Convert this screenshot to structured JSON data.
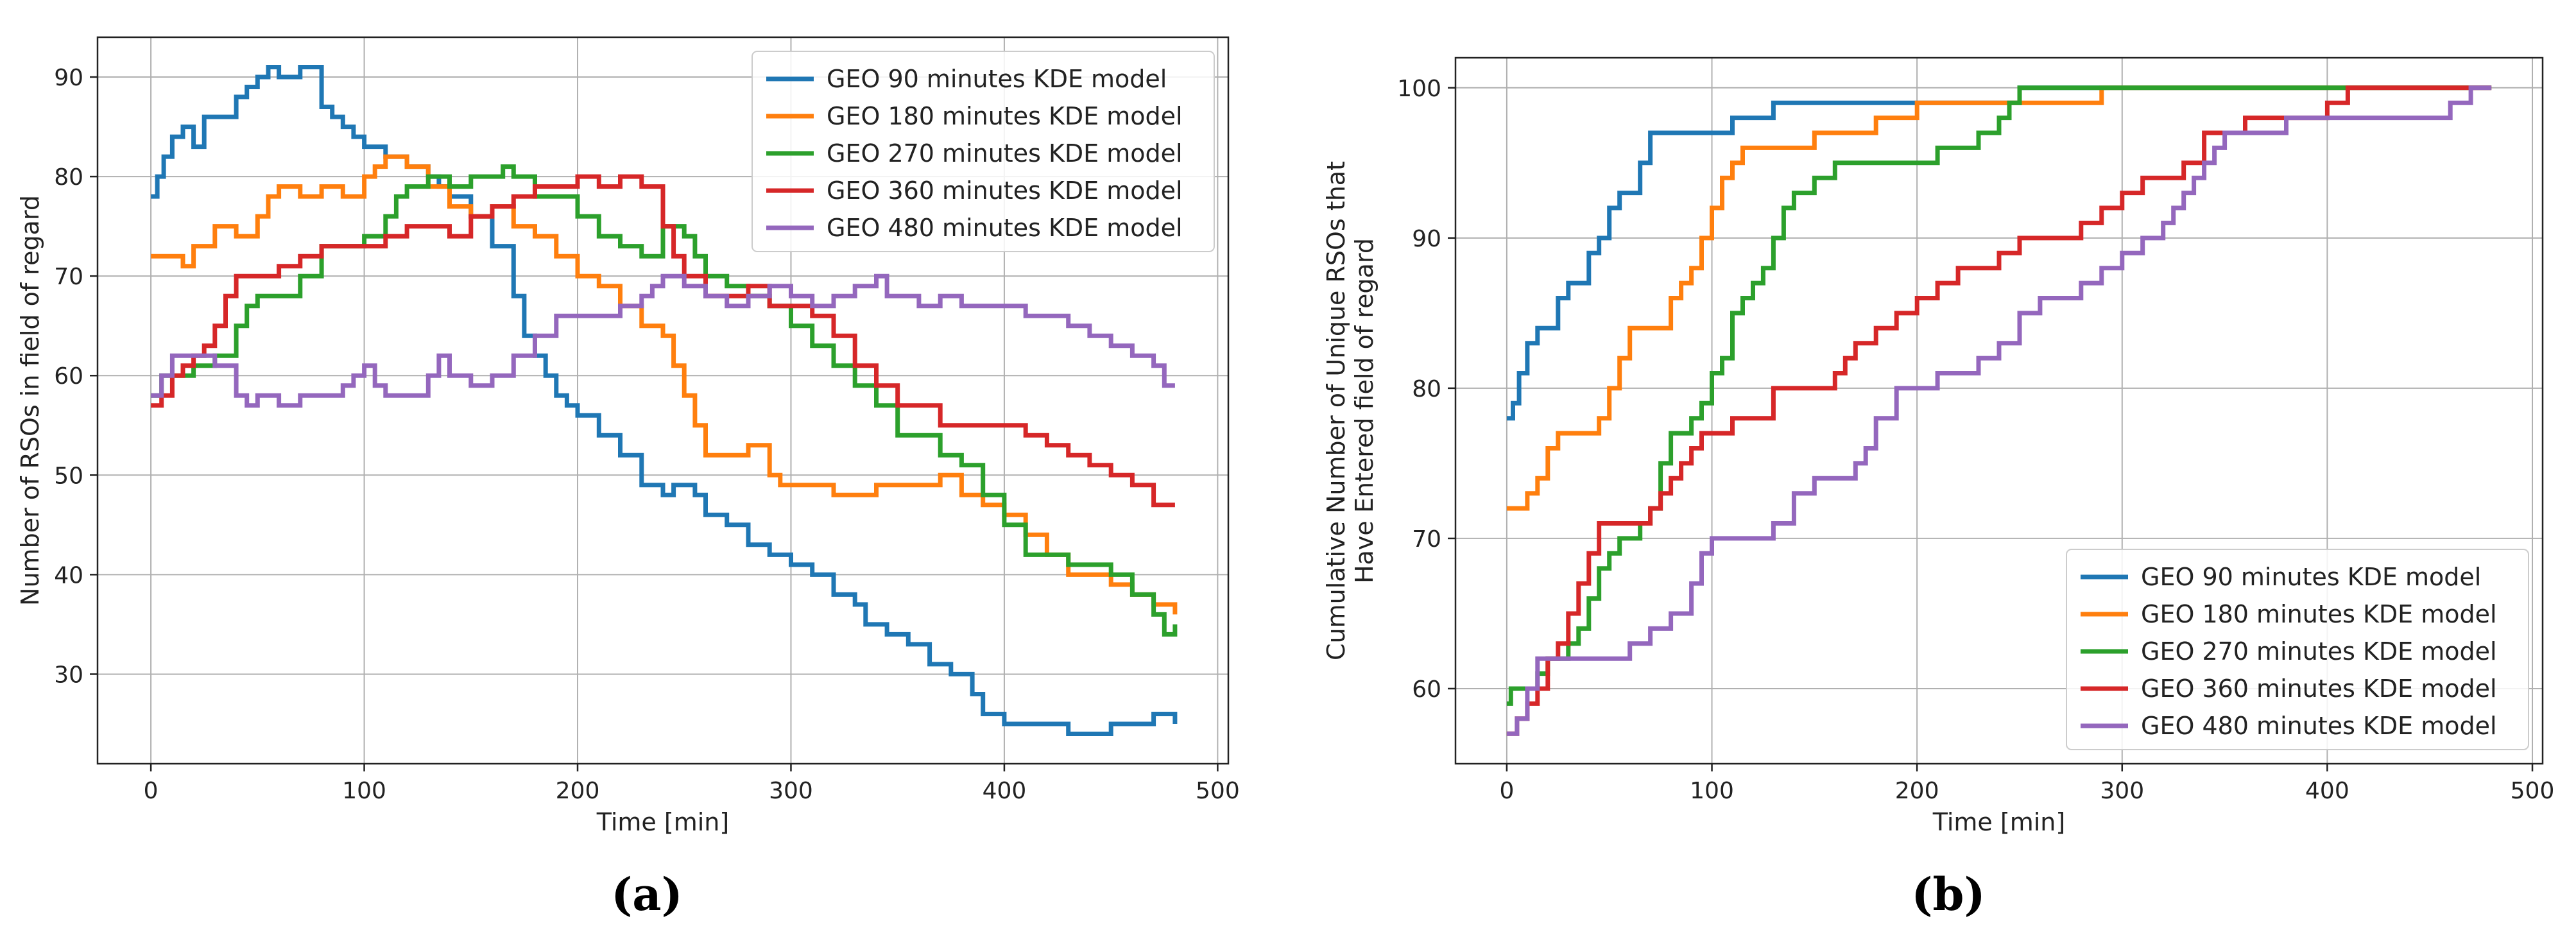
{
  "chart_data": [
    {
      "type": "line",
      "panel_label": "(a)",
      "title": "",
      "xlabel": "Time [min]",
      "ylabel": "Number of RSOs in field of regard",
      "xlim": [
        -25,
        505
      ],
      "ylim": [
        21,
        94
      ],
      "xticks": [
        0,
        100,
        200,
        300,
        400,
        500
      ],
      "yticks": [
        30,
        40,
        50,
        60,
        70,
        80,
        90
      ],
      "grid": true,
      "legend": "top-right",
      "series": [
        {
          "name": "GEO 90 minutes KDE model",
          "color": "#1f77b4",
          "x": [
            0,
            3,
            6,
            10,
            15,
            20,
            25,
            30,
            40,
            45,
            50,
            55,
            60,
            65,
            70,
            80,
            85,
            90,
            95,
            100,
            110,
            120,
            130,
            135,
            140,
            150,
            160,
            170,
            175,
            180,
            185,
            190,
            195,
            200,
            210,
            220,
            230,
            240,
            245,
            255,
            260,
            270,
            280,
            290,
            300,
            310,
            320,
            330,
            335,
            345,
            355,
            365,
            375,
            385,
            390,
            400,
            410,
            420,
            430,
            440,
            450,
            460,
            470,
            480
          ],
          "y": [
            78,
            80,
            82,
            84,
            85,
            83,
            86,
            86,
            88,
            89,
            90,
            91,
            90,
            90,
            91,
            87,
            86,
            85,
            84,
            83,
            82,
            81,
            80,
            79,
            78,
            76,
            73,
            68,
            64,
            62,
            60,
            58,
            57,
            56,
            54,
            52,
            49,
            48,
            49,
            48,
            46,
            45,
            43,
            42,
            41,
            40,
            38,
            37,
            35,
            34,
            33,
            31,
            30,
            28,
            26,
            25,
            25,
            25,
            24,
            24,
            25,
            25,
            26,
            25
          ]
        },
        {
          "name": "GEO 180 minutes KDE model",
          "color": "#ff7f0e",
          "x": [
            0,
            10,
            15,
            20,
            30,
            40,
            50,
            55,
            60,
            70,
            80,
            90,
            100,
            105,
            110,
            120,
            130,
            140,
            150,
            160,
            170,
            180,
            190,
            200,
            210,
            220,
            230,
            240,
            245,
            250,
            255,
            260,
            265,
            270,
            280,
            290,
            295,
            300,
            310,
            320,
            330,
            340,
            350,
            360,
            370,
            380,
            390,
            400,
            410,
            420,
            430,
            440,
            450,
            460,
            470,
            480
          ],
          "y": [
            72,
            72,
            71,
            73,
            75,
            74,
            76,
            78,
            79,
            78,
            79,
            78,
            80,
            81,
            82,
            81,
            79,
            77,
            76,
            77,
            75,
            74,
            72,
            70,
            69,
            67,
            65,
            64,
            61,
            58,
            55,
            52,
            52,
            52,
            53,
            50,
            49,
            49,
            49,
            48,
            48,
            49,
            49,
            49,
            50,
            48,
            47,
            46,
            44,
            42,
            40,
            40,
            39,
            38,
            37,
            36
          ]
        },
        {
          "name": "GEO 270 minutes KDE model",
          "color": "#2ca02c",
          "x": [
            0,
            5,
            10,
            20,
            30,
            40,
            45,
            50,
            60,
            70,
            80,
            90,
            100,
            110,
            115,
            120,
            130,
            140,
            150,
            160,
            165,
            170,
            180,
            190,
            200,
            210,
            220,
            230,
            240,
            250,
            255,
            260,
            270,
            280,
            290,
            300,
            310,
            320,
            330,
            340,
            350,
            360,
            370,
            380,
            390,
            400,
            410,
            420,
            430,
            440,
            450,
            460,
            470,
            475,
            480
          ],
          "y": [
            58,
            60,
            60,
            61,
            62,
            65,
            67,
            68,
            68,
            70,
            73,
            73,
            74,
            76,
            78,
            79,
            80,
            79,
            80,
            80,
            81,
            80,
            78,
            78,
            76,
            74,
            73,
            72,
            75,
            74,
            72,
            70,
            69,
            68,
            67,
            65,
            63,
            61,
            59,
            57,
            54,
            54,
            52,
            51,
            48,
            45,
            42,
            42,
            41,
            41,
            40,
            38,
            36,
            34,
            35
          ]
        },
        {
          "name": "GEO 360 minutes KDE model",
          "color": "#d62728",
          "x": [
            0,
            5,
            10,
            15,
            20,
            25,
            30,
            35,
            40,
            50,
            60,
            70,
            80,
            90,
            100,
            110,
            120,
            130,
            140,
            150,
            160,
            170,
            180,
            190,
            200,
            210,
            220,
            230,
            240,
            245,
            250,
            260,
            270,
            280,
            290,
            300,
            310,
            320,
            330,
            340,
            350,
            360,
            370,
            380,
            390,
            400,
            410,
            420,
            430,
            440,
            450,
            460,
            470,
            480
          ],
          "y": [
            57,
            58,
            60,
            61,
            62,
            63,
            65,
            68,
            70,
            70,
            71,
            72,
            73,
            73,
            73,
            74,
            75,
            75,
            74,
            76,
            77,
            78,
            79,
            79,
            80,
            79,
            80,
            79,
            75,
            72,
            70,
            68,
            68,
            69,
            67,
            67,
            66,
            64,
            61,
            59,
            57,
            57,
            55,
            55,
            55,
            55,
            54,
            53,
            52,
            51,
            50,
            49,
            47,
            47
          ]
        },
        {
          "name": "GEO 480 minutes KDE model",
          "color": "#9467bd",
          "x": [
            0,
            5,
            10,
            15,
            20,
            30,
            40,
            45,
            50,
            60,
            70,
            80,
            90,
            95,
            100,
            105,
            110,
            120,
            130,
            135,
            140,
            150,
            160,
            170,
            180,
            190,
            200,
            210,
            220,
            230,
            235,
            240,
            250,
            260,
            270,
            280,
            290,
            300,
            310,
            320,
            330,
            340,
            345,
            350,
            360,
            370,
            380,
            390,
            400,
            410,
            420,
            430,
            440,
            450,
            460,
            470,
            475,
            480
          ],
          "y": [
            58,
            60,
            62,
            62,
            62,
            61,
            58,
            57,
            58,
            57,
            58,
            58,
            59,
            60,
            61,
            59,
            58,
            58,
            60,
            62,
            60,
            59,
            60,
            62,
            64,
            66,
            66,
            66,
            67,
            68,
            69,
            70,
            69,
            68,
            67,
            68,
            69,
            68,
            67,
            68,
            69,
            70,
            68,
            68,
            67,
            68,
            67,
            67,
            67,
            66,
            66,
            65,
            64,
            63,
            62,
            61,
            59,
            59
          ]
        }
      ]
    },
    {
      "type": "line",
      "panel_label": "(b)",
      "title": "",
      "xlabel": "Time [min]",
      "ylabel": "Cumulative Number of Unique RSOs that\nHave Entered field of regard",
      "xlim": [
        -25,
        505
      ],
      "ylim": [
        55,
        102
      ],
      "xticks": [
        0,
        100,
        200,
        300,
        400,
        500
      ],
      "yticks": [
        60,
        70,
        80,
        90,
        100
      ],
      "grid": true,
      "legend": "bottom-right",
      "series": [
        {
          "name": "GEO 90 minutes KDE model",
          "color": "#1f77b4",
          "x": [
            0,
            3,
            6,
            10,
            15,
            20,
            25,
            30,
            35,
            40,
            45,
            50,
            55,
            60,
            65,
            70,
            80,
            90,
            100,
            110,
            120,
            130,
            190,
            250,
            480
          ],
          "y": [
            78,
            79,
            81,
            83,
            84,
            84,
            86,
            87,
            87,
            89,
            90,
            92,
            93,
            93,
            95,
            97,
            97,
            97,
            97,
            98,
            98,
            99,
            99,
            100,
            100
          ]
        },
        {
          "name": "GEO 180 minutes KDE model",
          "color": "#ff7f0e",
          "x": [
            0,
            10,
            15,
            20,
            25,
            40,
            45,
            50,
            55,
            60,
            75,
            80,
            85,
            90,
            95,
            100,
            105,
            110,
            115,
            120,
            130,
            150,
            170,
            180,
            200,
            250,
            280,
            290,
            480
          ],
          "y": [
            72,
            73,
            74,
            76,
            77,
            77,
            78,
            80,
            82,
            84,
            84,
            86,
            87,
            88,
            90,
            92,
            94,
            95,
            96,
            96,
            96,
            97,
            97,
            98,
            99,
            99,
            99,
            100,
            100
          ]
        },
        {
          "name": "GEO 270 minutes KDE model",
          "color": "#2ca02c",
          "x": [
            0,
            2,
            5,
            10,
            15,
            20,
            25,
            30,
            35,
            40,
            45,
            50,
            55,
            60,
            65,
            70,
            75,
            80,
            90,
            95,
            100,
            105,
            110,
            115,
            120,
            125,
            130,
            135,
            140,
            150,
            160,
            170,
            180,
            190,
            210,
            220,
            230,
            240,
            245,
            250,
            300,
            480
          ],
          "y": [
            59,
            60,
            60,
            60,
            61,
            62,
            62,
            63,
            64,
            66,
            68,
            69,
            70,
            70,
            71,
            72,
            75,
            77,
            78,
            79,
            81,
            82,
            85,
            86,
            87,
            88,
            90,
            92,
            93,
            94,
            95,
            95,
            95,
            95,
            96,
            96,
            97,
            98,
            99,
            100,
            100,
            100
          ]
        },
        {
          "name": "GEO 360 minutes KDE model",
          "color": "#d62728",
          "x": [
            0,
            5,
            10,
            15,
            20,
            25,
            30,
            35,
            40,
            45,
            55,
            60,
            65,
            70,
            75,
            80,
            85,
            90,
            95,
            100,
            110,
            120,
            130,
            150,
            160,
            165,
            170,
            180,
            190,
            200,
            210,
            220,
            240,
            250,
            270,
            280,
            290,
            300,
            310,
            320,
            330,
            340,
            355,
            360,
            380,
            400,
            410,
            480
          ],
          "y": [
            57,
            58,
            59,
            60,
            62,
            63,
            65,
            67,
            69,
            71,
            71,
            71,
            71,
            72,
            73,
            74,
            75,
            76,
            77,
            77,
            78,
            78,
            80,
            80,
            81,
            82,
            83,
            84,
            85,
            86,
            87,
            88,
            89,
            90,
            90,
            91,
            92,
            93,
            94,
            94,
            95,
            97,
            97,
            98,
            98,
            99,
            100,
            100
          ]
        },
        {
          "name": "GEO 480 minutes KDE model",
          "color": "#9467bd",
          "x": [
            0,
            5,
            10,
            15,
            20,
            30,
            40,
            50,
            60,
            70,
            80,
            90,
            95,
            100,
            110,
            120,
            130,
            140,
            150,
            170,
            175,
            180,
            190,
            210,
            220,
            230,
            240,
            250,
            260,
            270,
            280,
            290,
            300,
            310,
            320,
            325,
            330,
            335,
            340,
            345,
            350,
            360,
            380,
            400,
            420,
            440,
            460,
            470,
            480
          ],
          "y": [
            57,
            58,
            60,
            62,
            62,
            62,
            62,
            62,
            63,
            64,
            65,
            67,
            69,
            70,
            70,
            70,
            71,
            73,
            74,
            75,
            76,
            78,
            80,
            81,
            81,
            82,
            83,
            85,
            86,
            86,
            87,
            88,
            89,
            90,
            91,
            92,
            93,
            94,
            95,
            96,
            97,
            97,
            98,
            98,
            98,
            98,
            99,
            100,
            100
          ]
        }
      ]
    }
  ]
}
